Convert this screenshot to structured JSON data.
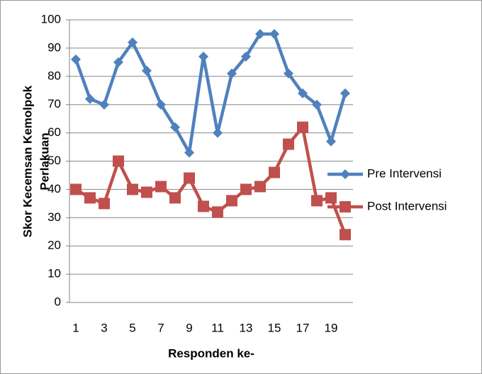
{
  "chart_data": {
    "type": "line",
    "ylabel": [
      "Skor Kecemsan Kemolpok",
      "Perlakuan"
    ],
    "xlabel": "Responden ke-",
    "categories": [
      "1",
      null,
      "3",
      null,
      "5",
      null,
      "7",
      null,
      "9",
      null,
      "11",
      null,
      "13",
      null,
      "15",
      null,
      "17",
      null,
      "19",
      null
    ],
    "series": [
      {
        "name": "Pre Intervensi",
        "color": "#4f81bd",
        "marker": "diamond",
        "values": [
          86,
          72,
          70,
          85,
          92,
          82,
          70,
          62,
          53,
          87,
          60,
          81,
          87,
          95,
          95,
          81,
          74,
          70,
          57,
          74
        ]
      },
      {
        "name": "Post Intervensi",
        "color": "#c0504d",
        "marker": "square",
        "values": [
          40,
          37,
          35,
          50,
          40,
          39,
          41,
          37,
          44,
          34,
          32,
          36,
          40,
          41,
          46,
          56,
          62,
          36,
          37,
          24
        ]
      }
    ],
    "ylim": [
      0,
      100
    ],
    "yticks": [
      0,
      10,
      20,
      30,
      40,
      50,
      60,
      70,
      80,
      90,
      100
    ],
    "grid": true,
    "legend": "right"
  }
}
